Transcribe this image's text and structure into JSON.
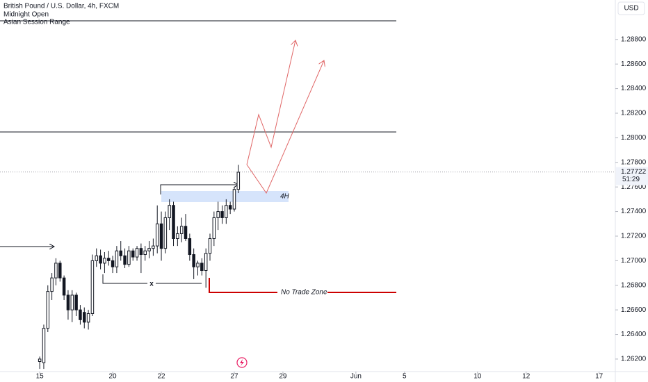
{
  "chart_data": {
    "type": "candlestick",
    "title": "British Pound / U.S. Dollar, 4h, FXCM",
    "indicators": [
      "Midnight Open",
      "Asian Session Range"
    ],
    "currency": "USD",
    "last_price": {
      "value": 1.27722,
      "label": "1.27722"
    },
    "countdown": "51:29",
    "annotations": {
      "zone": "4H",
      "no_trade": "No Trade Zone",
      "mark": "x"
    },
    "open": [
      1.2618,
      1.2617,
      1.2645,
      1.2675,
      1.2686,
      1.2698,
      1.2686,
      1.2672,
      1.266,
      1.2672,
      1.266,
      1.2658,
      1.265,
      1.2657,
      1.27,
      1.2704,
      1.2698,
      1.2702,
      1.27,
      1.2695,
      1.2708,
      1.2704,
      1.2697,
      1.2708,
      1.2703,
      1.271,
      1.2705,
      1.2708,
      1.271,
      1.2712,
      1.273,
      1.271,
      1.2735,
      1.2745,
      1.2718,
      1.2722,
      1.2728,
      1.2718,
      1.2705,
      1.2695,
      1.2698,
      1.2692,
      1.2706,
      1.2718,
      1.2735,
      1.274,
      1.2735,
      1.2745,
      1.2742,
      1.2758
    ],
    "high": [
      1.2622,
      1.2648,
      1.268,
      1.269,
      1.2702,
      1.27,
      1.2688,
      1.2676,
      1.2676,
      1.2674,
      1.2664,
      1.2662,
      1.266,
      1.2705,
      1.271,
      1.2709,
      1.2707,
      1.2708,
      1.2704,
      1.2712,
      1.2716,
      1.271,
      1.2712,
      1.271,
      1.2712,
      1.2714,
      1.2712,
      1.2716,
      1.2718,
      1.2745,
      1.274,
      1.274,
      1.275,
      1.2748,
      1.2728,
      1.2735,
      1.2738,
      1.2722,
      1.271,
      1.27,
      1.2702,
      1.271,
      1.2722,
      1.274,
      1.2748,
      1.2745,
      1.275,
      1.2748,
      1.276,
      1.2778
    ],
    "low": [
      1.2612,
      1.2612,
      1.2642,
      1.2668,
      1.268,
      1.2683,
      1.2668,
      1.2652,
      1.265,
      1.2655,
      1.2648,
      1.2645,
      1.2644,
      1.2655,
      1.2695,
      1.2693,
      1.269,
      1.2696,
      1.269,
      1.269,
      1.27,
      1.2694,
      1.2695,
      1.27,
      1.27,
      1.269,
      1.27,
      1.2702,
      1.2704,
      1.2706,
      1.27,
      1.2706,
      1.2725,
      1.2712,
      1.2712,
      1.2715,
      1.2716,
      1.27,
      1.2685,
      1.2688,
      1.2688,
      1.2678,
      1.27,
      1.2712,
      1.2725,
      1.273,
      1.273,
      1.2738,
      1.274,
      1.2755
    ],
    "close": [
      1.262,
      1.2645,
      1.2675,
      1.2686,
      1.2698,
      1.2686,
      1.2672,
      1.266,
      1.2672,
      1.266,
      1.2652,
      1.265,
      1.2657,
      1.27,
      1.2704,
      1.2698,
      1.2702,
      1.27,
      1.2695,
      1.2708,
      1.2704,
      1.2697,
      1.2708,
      1.2703,
      1.271,
      1.2705,
      1.2708,
      1.271,
      1.2712,
      1.273,
      1.271,
      1.2735,
      1.2745,
      1.2718,
      1.2722,
      1.2728,
      1.2718,
      1.2705,
      1.2695,
      1.2698,
      1.2692,
      1.2706,
      1.2718,
      1.2735,
      1.274,
      1.2735,
      1.2745,
      1.2742,
      1.2758,
      1.2772
    ],
    "up_color": "#ffffff",
    "down_color": "#131722",
    "ylim": [
      1.26098,
      1.29121
    ],
    "yticks": [
      {
        "value": 1.262,
        "label": "1.26200"
      },
      {
        "value": 1.264,
        "label": "1.26400"
      },
      {
        "value": 1.266,
        "label": "1.26600"
      },
      {
        "value": 1.268,
        "label": "1.26800"
      },
      {
        "value": 1.27,
        "label": "1.27000"
      },
      {
        "value": 1.272,
        "label": "1.27200"
      },
      {
        "value": 1.274,
        "label": "1.27400"
      },
      {
        "value": 1.276,
        "label": "1.27600"
      },
      {
        "value": 1.278,
        "label": "1.27800"
      },
      {
        "value": 1.28,
        "label": "1.28000"
      },
      {
        "value": 1.282,
        "label": "1.28200"
      },
      {
        "value": 1.284,
        "label": "1.28400"
      },
      {
        "value": 1.286,
        "label": "1.28600"
      },
      {
        "value": 1.288,
        "label": "1.28800"
      }
    ],
    "xlim": [
      -9.8,
      142
    ],
    "xticks": [
      {
        "value": 0,
        "label": "15"
      },
      {
        "value": 18,
        "label": "20"
      },
      {
        "value": 30,
        "label": "22"
      },
      {
        "value": 48,
        "label": "27"
      },
      {
        "value": 60,
        "label": "29"
      },
      {
        "value": 78,
        "label": "Jun"
      },
      {
        "value": 90,
        "label": "5"
      },
      {
        "value": 108,
        "label": "10"
      },
      {
        "value": 120,
        "label": "12"
      },
      {
        "value": 138,
        "label": "17"
      }
    ]
  }
}
